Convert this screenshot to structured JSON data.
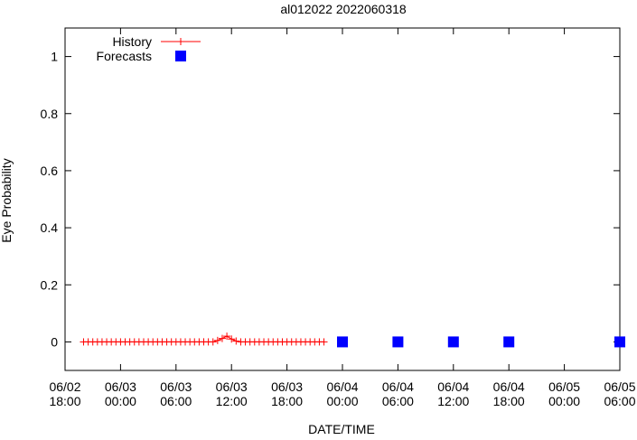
{
  "chart_data": {
    "type": "scatter",
    "title": "al012022 2022060318",
    "xlabel": "DATE/TIME",
    "ylabel": "Eye Probability",
    "xlim": [
      "2022-06-02 18:00",
      "2022-06-05 06:00"
    ],
    "ylim": [
      -0.1,
      1.1
    ],
    "xticks": [
      {
        "time": "2022-06-02 18:00",
        "label": [
          "06/02",
          "18:00"
        ]
      },
      {
        "time": "2022-06-03 00:00",
        "label": [
          "06/03",
          "00:00"
        ]
      },
      {
        "time": "2022-06-03 06:00",
        "label": [
          "06/03",
          "06:00"
        ]
      },
      {
        "time": "2022-06-03 12:00",
        "label": [
          "06/03",
          "12:00"
        ]
      },
      {
        "time": "2022-06-03 18:00",
        "label": [
          "06/03",
          "18:00"
        ]
      },
      {
        "time": "2022-06-04 00:00",
        "label": [
          "06/04",
          "00:00"
        ]
      },
      {
        "time": "2022-06-04 06:00",
        "label": [
          "06/04",
          "06:00"
        ]
      },
      {
        "time": "2022-06-04 12:00",
        "label": [
          "06/04",
          "12:00"
        ]
      },
      {
        "time": "2022-06-04 18:00",
        "label": [
          "06/04",
          "18:00"
        ]
      },
      {
        "time": "2022-06-05 00:00",
        "label": [
          "06/05",
          "00:00"
        ]
      },
      {
        "time": "2022-06-05 06:00",
        "label": [
          "06/05",
          "06:00"
        ]
      }
    ],
    "yticks": [
      {
        "value": 0,
        "label": "0"
      },
      {
        "value": 0.2,
        "label": "0.2"
      },
      {
        "value": 0.4,
        "label": "0.4"
      },
      {
        "value": 0.6,
        "label": "0.6"
      },
      {
        "value": 0.8,
        "label": "0.8"
      },
      {
        "value": 1,
        "label": "1"
      }
    ],
    "grid": false,
    "legend": "top-left",
    "series": [
      {
        "name": "History",
        "style": "line with plus markers",
        "color": "#ff0000",
        "x": [
          "2022-06-02 20:00",
          "2022-06-02 20:30",
          "2022-06-02 21:00",
          "2022-06-02 21:30",
          "2022-06-02 22:00",
          "2022-06-02 22:30",
          "2022-06-02 23:00",
          "2022-06-02 23:30",
          "2022-06-03 00:00",
          "2022-06-03 00:30",
          "2022-06-03 01:00",
          "2022-06-03 01:30",
          "2022-06-03 02:00",
          "2022-06-03 02:30",
          "2022-06-03 03:00",
          "2022-06-03 03:30",
          "2022-06-03 04:00",
          "2022-06-03 04:30",
          "2022-06-03 05:00",
          "2022-06-03 05:30",
          "2022-06-03 06:00",
          "2022-06-03 06:30",
          "2022-06-03 07:00",
          "2022-06-03 07:30",
          "2022-06-03 08:00",
          "2022-06-03 08:30",
          "2022-06-03 09:00",
          "2022-06-03 09:30",
          "2022-06-03 10:00",
          "2022-06-03 10:30",
          "2022-06-03 11:00",
          "2022-06-03 11:30",
          "2022-06-03 12:00",
          "2022-06-03 12:30",
          "2022-06-03 13:00",
          "2022-06-03 13:30",
          "2022-06-03 14:00",
          "2022-06-03 14:30",
          "2022-06-03 15:00",
          "2022-06-03 15:30",
          "2022-06-03 16:00",
          "2022-06-03 16:30",
          "2022-06-03 17:00",
          "2022-06-03 17:30",
          "2022-06-03 18:00",
          "2022-06-03 18:30",
          "2022-06-03 19:00",
          "2022-06-03 19:30",
          "2022-06-03 20:00",
          "2022-06-03 20:30",
          "2022-06-03 21:00",
          "2022-06-03 21:30",
          "2022-06-03 22:00"
        ],
        "y": [
          0,
          0,
          0,
          0,
          0,
          0,
          0,
          0,
          0,
          0,
          0,
          0,
          0,
          0,
          0,
          0,
          0,
          0,
          0,
          0,
          0,
          0,
          0,
          0,
          0,
          0,
          0,
          0,
          0,
          0.005,
          0.012,
          0.02,
          0.01,
          0.003,
          0,
          0,
          0,
          0,
          0,
          0,
          0,
          0,
          0,
          0,
          0,
          0,
          0,
          0,
          0,
          0,
          0,
          0,
          0
        ]
      },
      {
        "name": "Forecasts",
        "style": "square markers",
        "color": "#0000ff",
        "x": [
          "2022-06-04 00:00",
          "2022-06-04 06:00",
          "2022-06-04 12:00",
          "2022-06-04 18:00",
          "2022-06-05 06:00"
        ],
        "y": [
          0,
          0,
          0,
          0,
          0
        ]
      }
    ]
  }
}
